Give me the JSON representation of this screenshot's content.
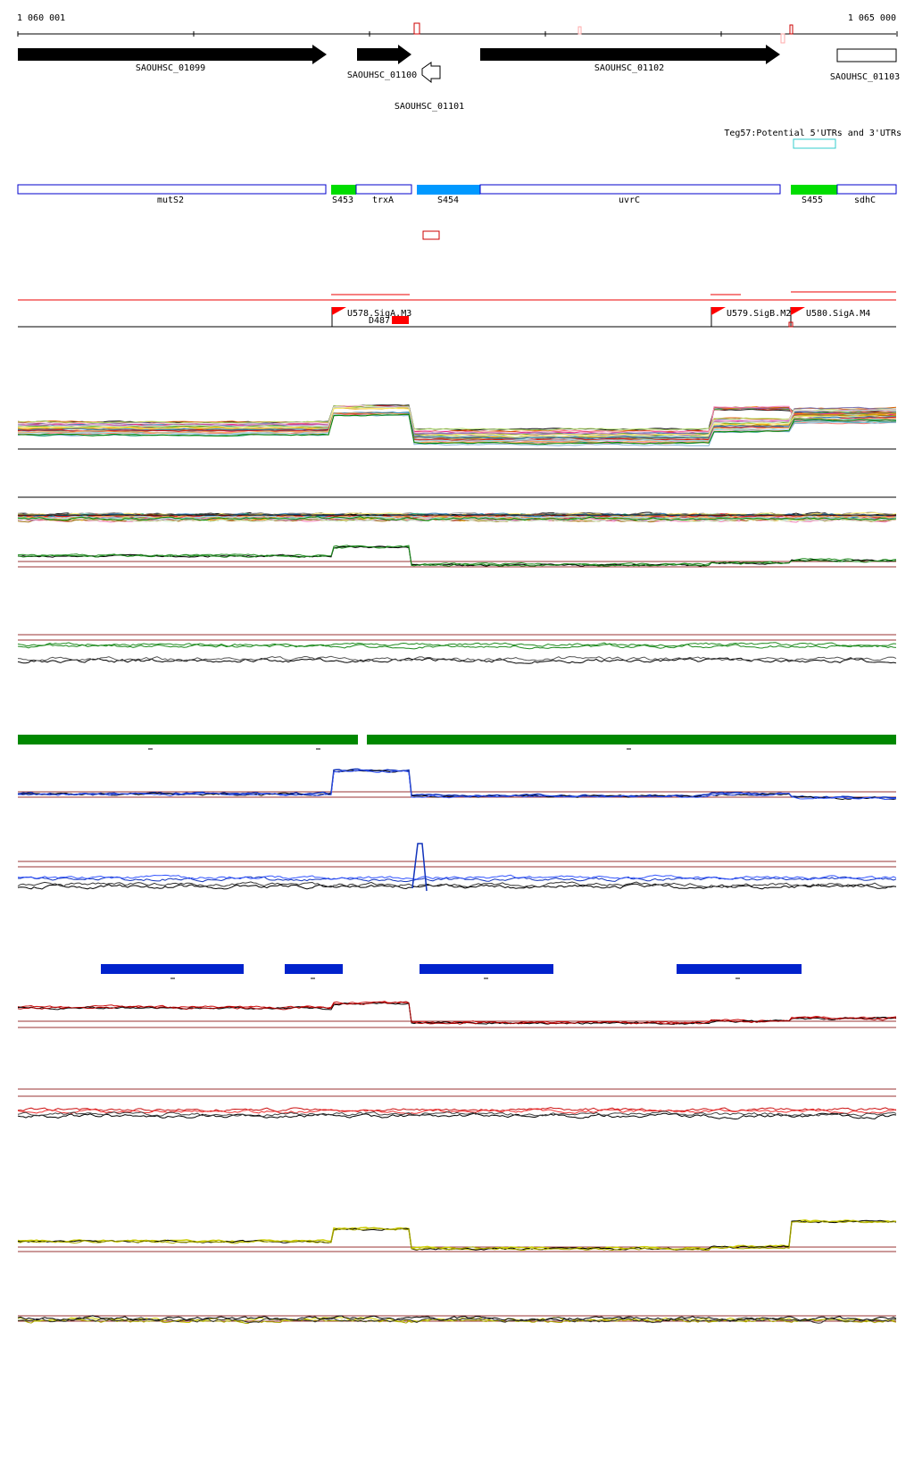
{
  "ruler": {
    "start_label": "1 060 001",
    "end_label": "1 065 000"
  },
  "genes": [
    {
      "label": "SAOUHSC_01099",
      "strand": "+",
      "style": "filled"
    },
    {
      "label": "SAOUHSC_01100",
      "strand": "+",
      "style": "filled"
    },
    {
      "label": "SAOUHSC_01101",
      "strand": "-",
      "style": "outline"
    },
    {
      "label": "SAOUHSC_01102",
      "strand": "+",
      "style": "filled"
    },
    {
      "label": "SAOUHSC_01103",
      "strand": "+",
      "style": "outline"
    }
  ],
  "utr_track": {
    "label": "Teg57:Potential 5'UTRs and 3'UTRs",
    "color": "#33cccc"
  },
  "segments": [
    {
      "label": "mutS2",
      "color": "#ffffff",
      "border": "#0000cc"
    },
    {
      "label": "S453",
      "color": "#00dd00",
      "border": "#00dd00"
    },
    {
      "label": "trxA",
      "color": "#ffffff",
      "border": "#0000cc"
    },
    {
      "label": "S454",
      "color": "#0099ff",
      "border": "#0099ff"
    },
    {
      "label": "uvrC",
      "color": "#ffffff",
      "border": "#0000cc"
    },
    {
      "label": "S455",
      "color": "#00dd00",
      "border": "#00dd00"
    },
    {
      "label": "sdhC",
      "color": "#ffffff",
      "border": "#0000cc"
    }
  ],
  "promoters": [
    {
      "label": "U578.SigA.M3",
      "color": "#ff0000"
    },
    {
      "label": "U579.SigB.M2",
      "color": "#ff0000"
    },
    {
      "label": "U580.SigA.M4",
      "color": "#ff0000"
    }
  ],
  "small_features": [
    {
      "label": "D487",
      "color": "#ff0000"
    }
  ],
  "colors": {
    "green_track": "#1e8a1e",
    "blue_track": "#1133bb",
    "red_track": "#cc1111",
    "yellow_track": "#cccc00",
    "reference_line": "#993333",
    "green_bar": "#008800",
    "blue_bar": "#0022cc"
  }
}
